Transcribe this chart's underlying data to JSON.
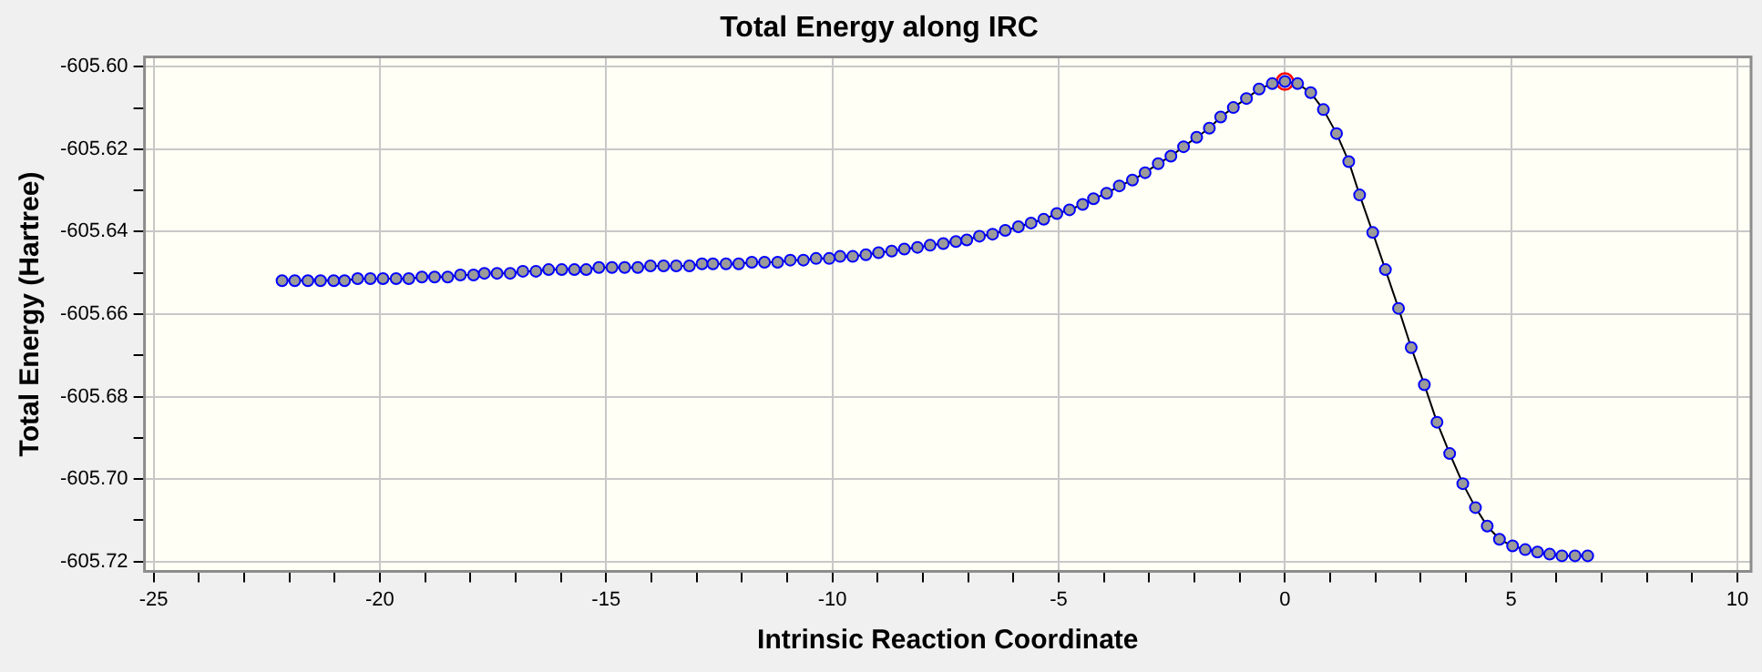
{
  "chart_data": {
    "type": "line",
    "title": "Total Energy along IRC",
    "xlabel": "Intrinsic Reaction Coordinate",
    "ylabel": "Total Energy (Hartree)",
    "marker": "circle",
    "grid": true,
    "legend": false,
    "xlim": [
      -25.2,
      10.3
    ],
    "ylim": [
      -605.7224,
      -605.5976
    ],
    "xticks": [
      -25,
      {
        "value": -24,
        "label": null
      },
      {
        "value": -23,
        "label": null
      },
      {
        "value": -22,
        "label": null
      },
      {
        "value": -21,
        "label": null
      },
      -20,
      {
        "value": -19,
        "label": null
      },
      {
        "value": -18,
        "label": null
      },
      {
        "value": -17,
        "label": null
      },
      {
        "value": -16,
        "label": null
      },
      -15,
      {
        "value": -14,
        "label": null
      },
      {
        "value": -13,
        "label": null
      },
      {
        "value": -12,
        "label": null
      },
      {
        "value": -11,
        "label": null
      },
      -10,
      {
        "value": -9,
        "label": null
      },
      {
        "value": -8,
        "label": null
      },
      {
        "value": -7,
        "label": null
      },
      {
        "value": -6,
        "label": null
      },
      -5,
      {
        "value": -4,
        "label": null
      },
      {
        "value": -3,
        "label": null
      },
      {
        "value": -2,
        "label": null
      },
      {
        "value": -1,
        "label": null
      },
      0,
      {
        "value": 1,
        "label": null
      },
      {
        "value": 2,
        "label": null
      },
      {
        "value": 3,
        "label": null
      },
      {
        "value": 4,
        "label": null
      },
      5,
      {
        "value": 6,
        "label": null
      },
      {
        "value": 7,
        "label": null
      },
      {
        "value": 8,
        "label": null
      },
      {
        "value": 9,
        "label": null
      },
      10
    ],
    "yticks": [
      {
        "value": -605.6,
        "label": "-605.60"
      },
      {
        "value": -605.61,
        "label": null
      },
      {
        "value": -605.62,
        "label": "-605.62"
      },
      {
        "value": -605.63,
        "label": null
      },
      {
        "value": -605.64,
        "label": "-605.64"
      },
      {
        "value": -605.65,
        "label": null
      },
      {
        "value": -605.66,
        "label": "-605.66"
      },
      {
        "value": -605.67,
        "label": null
      },
      {
        "value": -605.68,
        "label": "-605.68"
      },
      {
        "value": -605.69,
        "label": null
      },
      {
        "value": -605.7,
        "label": "-605.70"
      },
      {
        "value": -605.71,
        "label": null
      },
      {
        "value": -605.72,
        "label": "-605.72"
      }
    ],
    "series": [
      {
        "color": "#0000ff",
        "x": [
          -22.16,
          -21.88,
          -21.59,
          -21.31,
          -21.02,
          -20.78,
          -20.49,
          -20.21,
          -19.93,
          -19.64,
          -19.36,
          -19.07,
          -18.79,
          -18.5,
          -18.22,
          -17.93,
          -17.69,
          -17.41,
          -17.12,
          -16.84,
          -16.55,
          -16.27,
          -15.98,
          -15.7,
          -15.44,
          -15.16,
          -14.87,
          -14.59,
          -14.3,
          -14.02,
          -13.73,
          -13.45,
          -13.16,
          -12.88,
          -12.64,
          -12.35,
          -12.07,
          -11.78,
          -11.5,
          -11.21,
          -10.93,
          -10.64,
          -10.36,
          -10.07,
          -9.83,
          -9.55,
          -9.26,
          -8.98,
          -8.69,
          -8.41,
          -8.12,
          -7.84,
          -7.55,
          -7.27,
          -7.03,
          -6.75,
          -6.46,
          -6.18,
          -5.89,
          -5.61,
          -5.33,
          -5.04,
          -4.76,
          -4.47,
          -4.23,
          -3.94,
          -3.66,
          -3.37,
          -3.09,
          -2.8,
          -2.52,
          -2.24,
          -1.95,
          -1.67,
          -1.42,
          -1.14,
          -0.85,
          -0.57,
          -0.28,
          0,
          0.28,
          0.57,
          0.85,
          1.14,
          1.41,
          1.65,
          1.94,
          2.22,
          2.51,
          2.79,
          3.08,
          3.36,
          3.64,
          3.93,
          4.21,
          4.47,
          4.74,
          5.03,
          5.31,
          5.58,
          5.85,
          6.12,
          6.41,
          6.69
        ],
        "values": [
          -605.6519,
          -605.6519,
          -605.6519,
          -605.6519,
          -605.6519,
          -605.6519,
          -605.6514,
          -605.6514,
          -605.6514,
          -605.6514,
          -605.6514,
          -605.651,
          -605.651,
          -605.651,
          -605.6505,
          -605.6505,
          -605.6501,
          -605.6501,
          -605.6501,
          -605.6496,
          -605.6496,
          -605.6492,
          -605.6492,
          -605.6492,
          -605.6492,
          -605.6487,
          -605.6487,
          -605.6487,
          -605.6487,
          -605.6483,
          -605.6483,
          -605.6483,
          -605.6483,
          -605.6478,
          -605.6478,
          -605.6478,
          -605.6478,
          -605.6474,
          -605.6474,
          -605.6474,
          -605.6469,
          -605.6469,
          -605.6465,
          -605.6465,
          -605.646,
          -605.646,
          -605.6456,
          -605.6451,
          -605.6447,
          -605.6442,
          -605.6438,
          -605.6433,
          -605.6429,
          -605.6424,
          -605.642,
          -605.6411,
          -605.6406,
          -605.6397,
          -605.6388,
          -605.6379,
          -605.637,
          -605.6356,
          -605.6347,
          -605.6334,
          -605.632,
          -605.6307,
          -605.6289,
          -605.6275,
          -605.6257,
          -605.6235,
          -605.6217,
          -605.6194,
          -605.6171,
          -605.6149,
          -605.6122,
          -605.6099,
          -605.6077,
          -605.6054,
          -605.6041,
          -605.6036,
          -605.6041,
          -605.6063,
          -605.6104,
          -605.6162,
          -605.623,
          -605.6311,
          -605.6402,
          -605.6492,
          -605.6586,
          -605.6681,
          -605.6771,
          -605.6862,
          -605.6938,
          -605.7011,
          -605.7069,
          -605.7114,
          -605.7146,
          -605.7162,
          -605.7171,
          -605.7177,
          -605.7182,
          -605.7186,
          -605.7186,
          -605.7186
        ]
      },
      {
        "type": "scatter",
        "color": "#ff0000",
        "x": [
          0
        ],
        "values": [
          -605.6036
        ]
      }
    ]
  }
}
